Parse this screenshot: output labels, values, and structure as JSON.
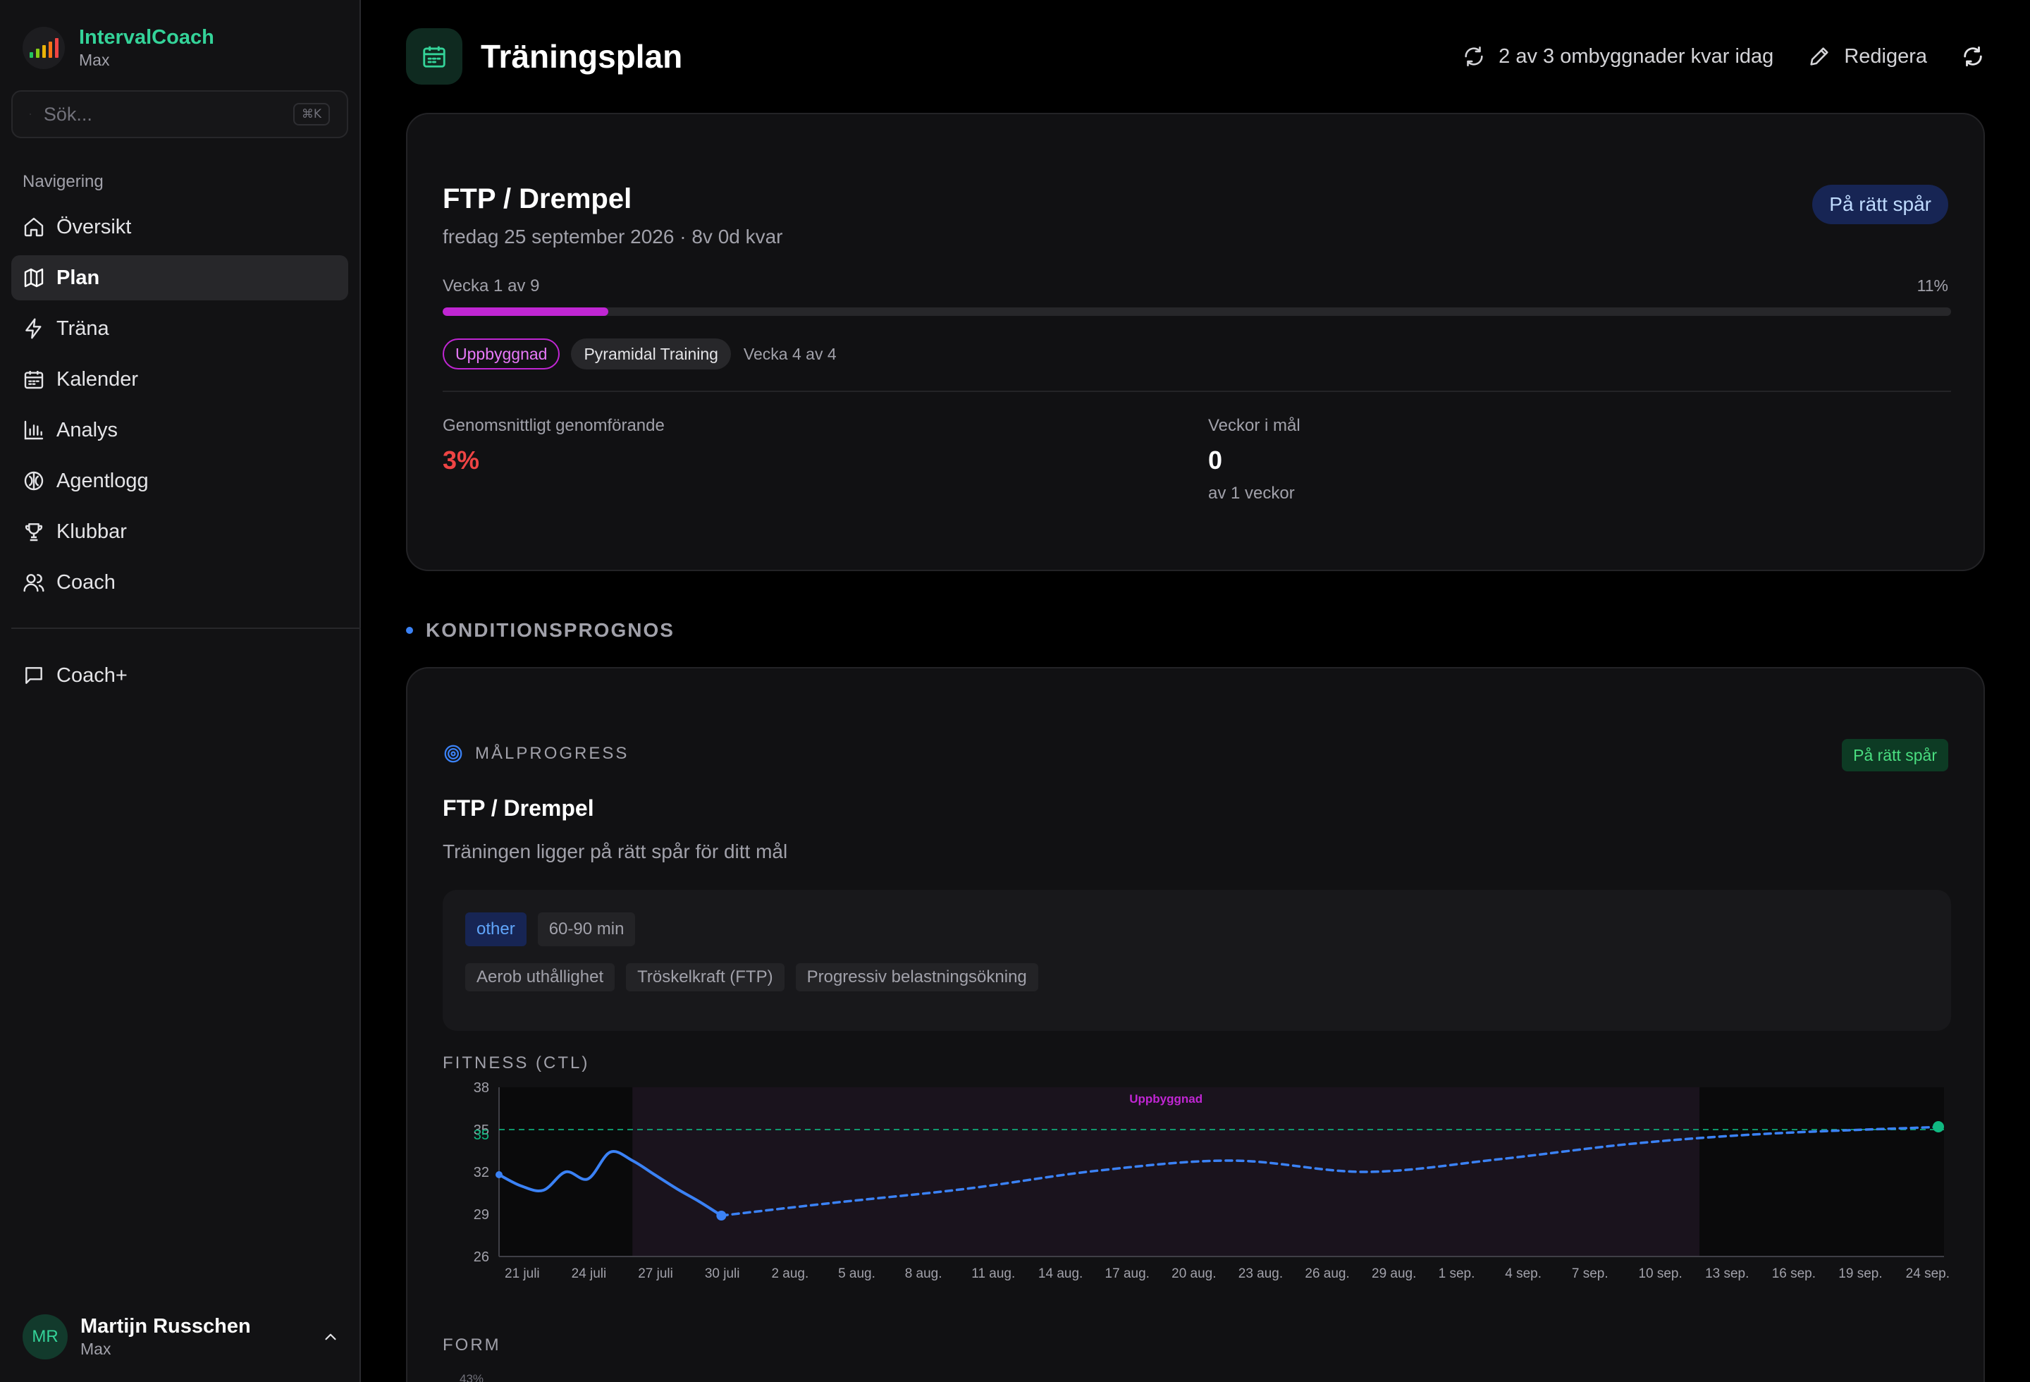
{
  "sidebar": {
    "app_name": "IntervalCoach",
    "app_sub": "Max",
    "search": {
      "placeholder": "Sök...",
      "shortcut": "⌘K"
    },
    "nav_title": "Navigering",
    "items": [
      {
        "label": "Översikt",
        "icon": "home-icon"
      },
      {
        "label": "Plan",
        "icon": "map-icon",
        "active": true
      },
      {
        "label": "Träna",
        "icon": "zap-icon"
      },
      {
        "label": "Kalender",
        "icon": "calendar-icon"
      },
      {
        "label": "Analys",
        "icon": "bar-chart-icon"
      },
      {
        "label": "Agentlogg",
        "icon": "brain-icon"
      },
      {
        "label": "Klubbar",
        "icon": "trophy-icon"
      },
      {
        "label": "Coach",
        "icon": "users-icon"
      }
    ],
    "secondary": [
      {
        "label": "Coach+",
        "icon": "message-square-icon"
      }
    ],
    "user": {
      "initials": "MR",
      "name": "Martijn Russchen",
      "plan": "Max"
    }
  },
  "header": {
    "title": "Träningsplan",
    "rebuilds": "2 av 3 ombyggnader kvar idag",
    "edit": "Redigera"
  },
  "goal": {
    "title": "FTP / Drempel",
    "date": "fredag 25 september 2026 · 8v 0d kvar",
    "status": "På rätt spår",
    "week_label": "Vecka 1 av 9",
    "week_pct": "11%",
    "progress": 0.11,
    "phase": "Uppbyggnad",
    "block": "Pyramidal Training",
    "block_week": "Vecka 4 av 4",
    "avg_label": "Genomsnittligt genomförande",
    "avg_value": "3%",
    "weeks_label": "Veckor i mål",
    "weeks_value": "0",
    "weeks_sub": "av 1 veckor"
  },
  "forecast": {
    "section": "KONDITIONSPROGNOS",
    "label": "MÅLPROGRESS",
    "status": "På rätt spår",
    "title": "FTP / Drempel",
    "desc": "Träningen ligger på rätt spår för ditt mål",
    "tags1": [
      "other",
      "60-90 min"
    ],
    "tags2": [
      "Aerob uthållighet",
      "Tröskelkraft (FTP)",
      "Progressiv belastningsökning"
    ],
    "chart_title": "FITNESS (CTL)",
    "form_title": "FORM",
    "form_tick": "43%"
  },
  "chart_data": {
    "type": "line",
    "title": "FITNESS (CTL)",
    "x_ticks": [
      "21 juli",
      "24 juli",
      "27 juli",
      "30 juli",
      "2 aug.",
      "5 aug.",
      "8 aug.",
      "11 aug.",
      "14 aug.",
      "17 aug.",
      "20 aug.",
      "23 aug.",
      "26 aug.",
      "29 aug.",
      "1 sep.",
      "4 sep.",
      "7 sep.",
      "10 sep.",
      "13 sep.",
      "16 sep.",
      "19 sep.",
      "24 sep."
    ],
    "y_ticks": [
      38,
      35,
      32,
      29,
      26
    ],
    "ylim": [
      26,
      38
    ],
    "target": 35,
    "target_label": "35",
    "phase_band": {
      "label": "Uppbyggnad",
      "from": "27 juli",
      "to": "13 sep."
    },
    "series": [
      {
        "style": "solid",
        "color": "#3b82f6",
        "x": [
          "21 juli",
          "22 juli",
          "23 juli",
          "24 juli",
          "25 juli",
          "26 juli",
          "27 juli",
          "28 juli",
          "29 juli",
          "30 juli",
          "31 juli"
        ],
        "y": [
          31.8,
          31.0,
          30.7,
          32.0,
          31.5,
          33.4,
          32.8,
          31.8,
          30.8,
          29.9,
          28.9
        ]
      },
      {
        "style": "dashed",
        "color": "#3b82f6",
        "x": [
          "31 juli",
          "5 aug.",
          "11 aug.",
          "17 aug.",
          "23 aug.",
          "29 aug.",
          "4 sep.",
          "10 sep.",
          "16 sep.",
          "24 sep."
        ],
        "y": [
          28.9,
          29.8,
          30.8,
          32.1,
          32.8,
          32.0,
          32.9,
          34.0,
          34.7,
          35.2
        ]
      }
    ]
  }
}
